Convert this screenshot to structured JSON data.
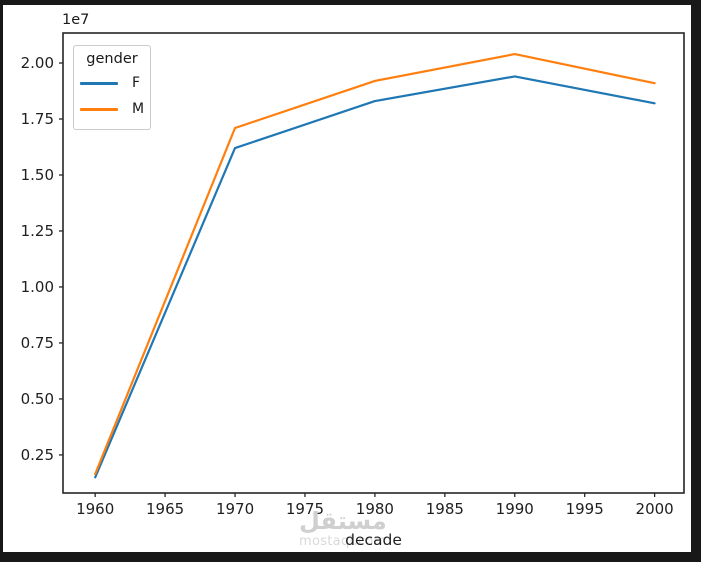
{
  "window": {
    "background_color": "#181818",
    "figure_background_color": "#ffffff"
  },
  "chart_data": {
    "type": "line",
    "title": "",
    "xlabel": "decade",
    "ylabel": "",
    "offset_text": "1e7",
    "legend_title": "gender",
    "legend_position": "upper left",
    "grid": false,
    "x": [
      1960,
      1970,
      1980,
      1990,
      2000
    ],
    "series": [
      {
        "name": "F",
        "color": "#1f77b4",
        "values": [
          1500000,
          16200000,
          18300000,
          19400000,
          18200000
        ]
      },
      {
        "name": "M",
        "color": "#ff7f0e",
        "values": [
          1650000,
          17100000,
          19200000,
          20400000,
          19100000
        ]
      }
    ],
    "xlim": [
      1957.7,
      2002.1
    ],
    "ylim": [
      800000,
      21340000
    ],
    "x_ticks": [
      1960,
      1965,
      1970,
      1975,
      1980,
      1985,
      1990,
      1995,
      2000
    ],
    "x_tick_labels": [
      "1960",
      "1965",
      "1970",
      "1975",
      "1980",
      "1985",
      "1990",
      "1995",
      "2000"
    ],
    "y_ticks": [
      2500000,
      5000000,
      7500000,
      10000000,
      12500000,
      15000000,
      17500000,
      20000000
    ],
    "y_tick_labels": [
      "0.25",
      "0.50",
      "0.75",
      "1.00",
      "1.25",
      "1.50",
      "1.75",
      "2.00"
    ],
    "axis_color": "#262626",
    "tick_label_color": "#1f1f1f"
  },
  "watermark": {
    "arabic": "مستقل",
    "latin": "mostaql.com"
  }
}
